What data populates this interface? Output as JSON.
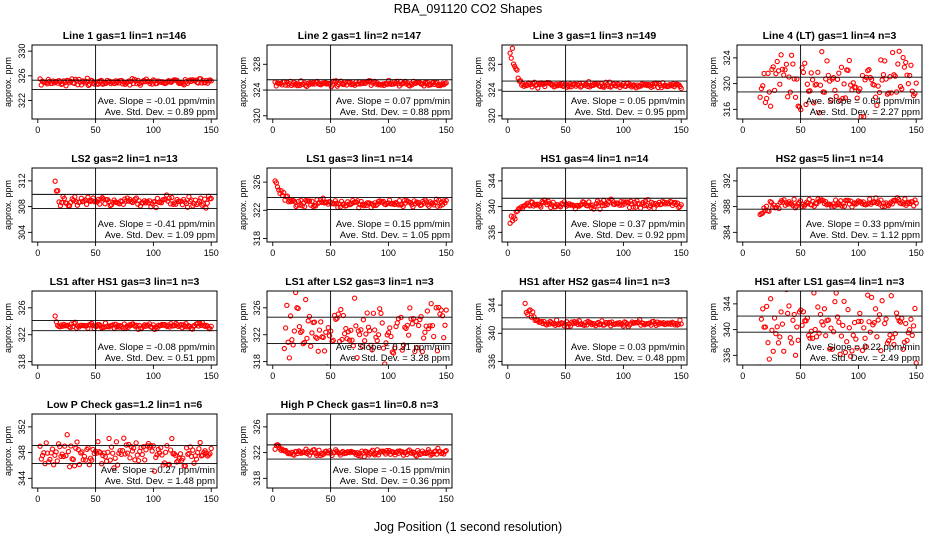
{
  "figure": {
    "title": "RBA_091120  CO2 Shapes",
    "xlabel": "Jog Position (1 second resolution)"
  },
  "colors": {
    "points": "#ff0000",
    "axes": "#000000",
    "background": "#ffffff"
  },
  "chart_data": [
    {
      "type": "scatter",
      "title": "Line 1 gas=1 lin=1 n=146",
      "ylabel": "approx. ppm",
      "xlim": [
        -5,
        155
      ],
      "xticks": [
        0,
        50,
        100,
        150
      ],
      "ylim": [
        319,
        331
      ],
      "yticks": [
        322,
        326,
        330
      ],
      "ref_x": 50,
      "ref_lines": [
        325.3,
        323.8
      ],
      "x_start": 2,
      "x_end": 150,
      "n_points": 146,
      "base": 325.0,
      "noise": 0.35,
      "spike": 0,
      "spike_len": 0,
      "stats": {
        "slope": "Ave. Slope = -0.01  ppm/min",
        "sd": "Ave. Std. Dev. = 0.89  ppm"
      }
    },
    {
      "type": "scatter",
      "title": "Line 2 gas=1 lin=2 n=147",
      "ylabel": "approx. ppm",
      "xlim": [
        -5,
        155
      ],
      "xticks": [
        0,
        50,
        100,
        150
      ],
      "ylim": [
        319.5,
        331
      ],
      "yticks": [
        320,
        324,
        328
      ],
      "ref_x": 50,
      "ref_lines": [
        325.6,
        324.0
      ],
      "x_start": 2,
      "x_end": 150,
      "n_points": 147,
      "base": 325.0,
      "noise": 0.3,
      "spike": 0,
      "spike_len": 0,
      "stats": {
        "slope": "Ave. Slope = 0.07  ppm/min",
        "sd": "Ave. Std. Dev. = 0.88  ppm"
      }
    },
    {
      "type": "scatter",
      "title": "Line 3 gas=1 lin=3 n=149",
      "ylabel": "approx. ppm",
      "xlim": [
        -5,
        155
      ],
      "xticks": [
        0,
        50,
        100,
        150
      ],
      "ylim": [
        319.5,
        331
      ],
      "yticks": [
        320,
        324,
        328
      ],
      "ref_x": 50,
      "ref_lines": [
        325.4,
        323.8
      ],
      "x_start": 2,
      "x_end": 150,
      "n_points": 149,
      "base": 324.8,
      "noise": 0.3,
      "spike": 5.5,
      "spike_len": 10,
      "stats": {
        "slope": "Ave. Slope = 0.05  ppm/min",
        "sd": "Ave. Std. Dev. = 0.95  ppm"
      }
    },
    {
      "type": "scatter",
      "title": "Line 4 (LT) gas=1 lin=4 n=3",
      "ylabel": "approx. ppm",
      "xlim": [
        -5,
        155
      ],
      "xticks": [
        0,
        50,
        100,
        150
      ],
      "ylim": [
        314.5,
        326
      ],
      "yticks": [
        316,
        320,
        324
      ],
      "ref_x": 50,
      "ref_lines": [
        321.0,
        318.7
      ],
      "x_start": 15,
      "x_end": 150,
      "n_points": 120,
      "base": 320.0,
      "noise": 3.6,
      "spike": 0,
      "spike_len": 0,
      "stats": {
        "slope": "Ave. Slope = 0.64  ppm/min",
        "sd": "Ave. Std. Dev. = 2.27  ppm"
      }
    },
    {
      "type": "scatter",
      "title": "LS2 gas=2 lin=1 n=13",
      "ylabel": "approx. ppm",
      "xlim": [
        -5,
        155
      ],
      "xticks": [
        0,
        50,
        100,
        150
      ],
      "ylim": [
        302.5,
        314
      ],
      "yticks": [
        304,
        308,
        312
      ],
      "ref_x": 50,
      "ref_lines": [
        309.9,
        307.7
      ],
      "x_start": 15,
      "x_end": 150,
      "n_points": 120,
      "base": 308.8,
      "noise": 0.6,
      "spike": 3.5,
      "spike_len": 4,
      "stats": {
        "slope": "Ave. Slope = -0.41  ppm/min",
        "sd": "Ave. Std. Dev. = 1.09  ppm"
      }
    },
    {
      "type": "scatter",
      "title": "LS1 gas=3 lin=1 n=14",
      "ylabel": "approx. ppm",
      "xlim": [
        -5,
        155
      ],
      "xticks": [
        0,
        50,
        100,
        150
      ],
      "ylim": [
        317.5,
        328
      ],
      "yticks": [
        318,
        322,
        326
      ],
      "ref_x": 50,
      "ref_lines": [
        323.8,
        322.1
      ],
      "x_start": 2,
      "x_end": 150,
      "n_points": 140,
      "base": 323.0,
      "noise": 0.4,
      "spike": 2.6,
      "spike_len": 14,
      "stats": {
        "slope": "Ave. Slope = 0.15  ppm/min",
        "sd": "Ave. Std. Dev. = 1.05  ppm"
      }
    },
    {
      "type": "scatter",
      "title": "HS1 gas=4 lin=1 n=14",
      "ylabel": "approx. ppm",
      "xlim": [
        -5,
        155
      ],
      "xticks": [
        0,
        50,
        100,
        150
      ],
      "ylim": [
        334.5,
        346
      ],
      "yticks": [
        336,
        340,
        344
      ],
      "ref_x": 50,
      "ref_lines": [
        341.3,
        339.4
      ],
      "x_start": 2,
      "x_end": 150,
      "n_points": 140,
      "base": 340.4,
      "noise": 0.45,
      "spike": -2.6,
      "spike_len": 12,
      "stats": {
        "slope": "Ave. Slope = 0.37  ppm/min",
        "sd": "Ave. Std. Dev. = 0.92  ppm"
      }
    },
    {
      "type": "scatter",
      "title": "HS2 gas=5 lin=1 n=14",
      "ylabel": "approx. ppm",
      "xlim": [
        -5,
        155
      ],
      "xticks": [
        0,
        50,
        100,
        150
      ],
      "ylim": [
        382.5,
        394
      ],
      "yticks": [
        384,
        388,
        392
      ],
      "ref_x": 50,
      "ref_lines": [
        389.6,
        387.6
      ],
      "x_start": 15,
      "x_end": 150,
      "n_points": 125,
      "base": 388.6,
      "noise": 0.5,
      "spike": -1.6,
      "spike_len": 18,
      "stats": {
        "slope": "Ave. Slope = 0.33  ppm/min",
        "sd": "Ave. Std. Dev. = 1.12  ppm"
      }
    },
    {
      "type": "scatter",
      "title": "LS1 after HS1 gas=3 lin=1 n=3",
      "ylabel": "approx. ppm",
      "xlim": [
        -5,
        155
      ],
      "xticks": [
        0,
        50,
        100,
        150
      ],
      "ylim": [
        317.5,
        328.5
      ],
      "yticks": [
        318,
        322,
        326
      ],
      "ref_x": 50,
      "ref_lines": [
        324.1,
        322.6
      ],
      "x_start": 15,
      "x_end": 150,
      "n_points": 125,
      "base": 323.3,
      "noise": 0.3,
      "spike": 1.5,
      "spike_len": 2,
      "stats": {
        "slope": "Ave. Slope = -0.08  ppm/min",
        "sd": "Ave. Std. Dev. = 0.51  ppm"
      }
    },
    {
      "type": "scatter",
      "title": "LS1 after LS2 gas=3 lin=1 n=3",
      "ylabel": "approx. ppm",
      "xlim": [
        -5,
        155
      ],
      "xticks": [
        0,
        50,
        100,
        150
      ],
      "ylim": [
        317.5,
        328.5
      ],
      "yticks": [
        318,
        322,
        326
      ],
      "ref_x": 50,
      "ref_lines": [
        324.6,
        320.7
      ],
      "x_start": 10,
      "x_end": 150,
      "n_points": 130,
      "base": 322.8,
      "noise": 3.3,
      "spike": 0,
      "spike_len": 0,
      "stats": {
        "slope": "Ave. Slope = 0.31  ppm/min",
        "sd": "Ave. Std. Dev. = 3.28  ppm"
      }
    },
    {
      "type": "scatter",
      "title": "HS1 after HS2 gas=4 lin=1 n=3",
      "ylabel": "approx. ppm",
      "xlim": [
        -5,
        155
      ],
      "xticks": [
        0,
        50,
        100,
        150
      ],
      "ylim": [
        335.5,
        346
      ],
      "yticks": [
        336,
        340,
        344
      ],
      "ref_x": 50,
      "ref_lines": [
        342.2,
        340.6
      ],
      "x_start": 15,
      "x_end": 150,
      "n_points": 125,
      "base": 341.4,
      "noise": 0.3,
      "spike": 2.3,
      "spike_len": 12,
      "stats": {
        "slope": "Ave. Slope = 0.03  ppm/min",
        "sd": "Ave. Std. Dev. = 0.48  ppm"
      }
    },
    {
      "type": "scatter",
      "title": "HS1 after LS1 gas=4 lin=1 n=3",
      "ylabel": "approx. ppm",
      "xlim": [
        -5,
        155
      ],
      "xticks": [
        0,
        50,
        100,
        150
      ],
      "ylim": [
        334.5,
        346
      ],
      "yticks": [
        336,
        340,
        344
      ],
      "ref_x": 50,
      "ref_lines": [
        342.1,
        339.6
      ],
      "x_start": 15,
      "x_end": 150,
      "n_points": 120,
      "base": 340.5,
      "noise": 3.5,
      "spike": 0,
      "spike_len": 0,
      "stats": {
        "slope": "Ave. Slope = 0.22  ppm/min",
        "sd": "Ave. Std. Dev. = 2.49  ppm"
      }
    },
    {
      "type": "scatter",
      "title": "Low P Check gas=1.2 lin=1 n=6",
      "ylabel": "approx. ppm",
      "xlim": [
        -5,
        155
      ],
      "xticks": [
        0,
        50,
        100,
        150
      ],
      "ylim": [
        342.5,
        354
      ],
      "yticks": [
        344,
        348,
        352
      ],
      "ref_x": 50,
      "ref_lines": [
        349.1,
        346.3
      ],
      "x_start": 2,
      "x_end": 150,
      "n_points": 140,
      "base": 348.0,
      "noise": 1.6,
      "spike": 0,
      "spike_len": 0,
      "stats": {
        "slope": "Ave. Slope = 0.27  ppm/min",
        "sd": "Ave. Std. Dev. = 1.48  ppm"
      }
    },
    {
      "type": "scatter",
      "title": "High P Check gas=1 lin=0.8 n=3",
      "ylabel": "approx. ppm",
      "xlim": [
        -5,
        155
      ],
      "xticks": [
        0,
        50,
        100,
        150
      ],
      "ylim": [
        316.5,
        328
      ],
      "yticks": [
        318,
        322,
        326
      ],
      "ref_x": 50,
      "ref_lines": [
        323.2,
        321.0
      ],
      "x_start": 2,
      "x_end": 150,
      "n_points": 145,
      "base": 322.0,
      "noise": 0.35,
      "spike": 1.2,
      "spike_len": 10,
      "stats": {
        "slope": "Ave. Slope = -0.15  ppm/min",
        "sd": "Ave. Std. Dev. = 0.36  ppm"
      }
    }
  ]
}
